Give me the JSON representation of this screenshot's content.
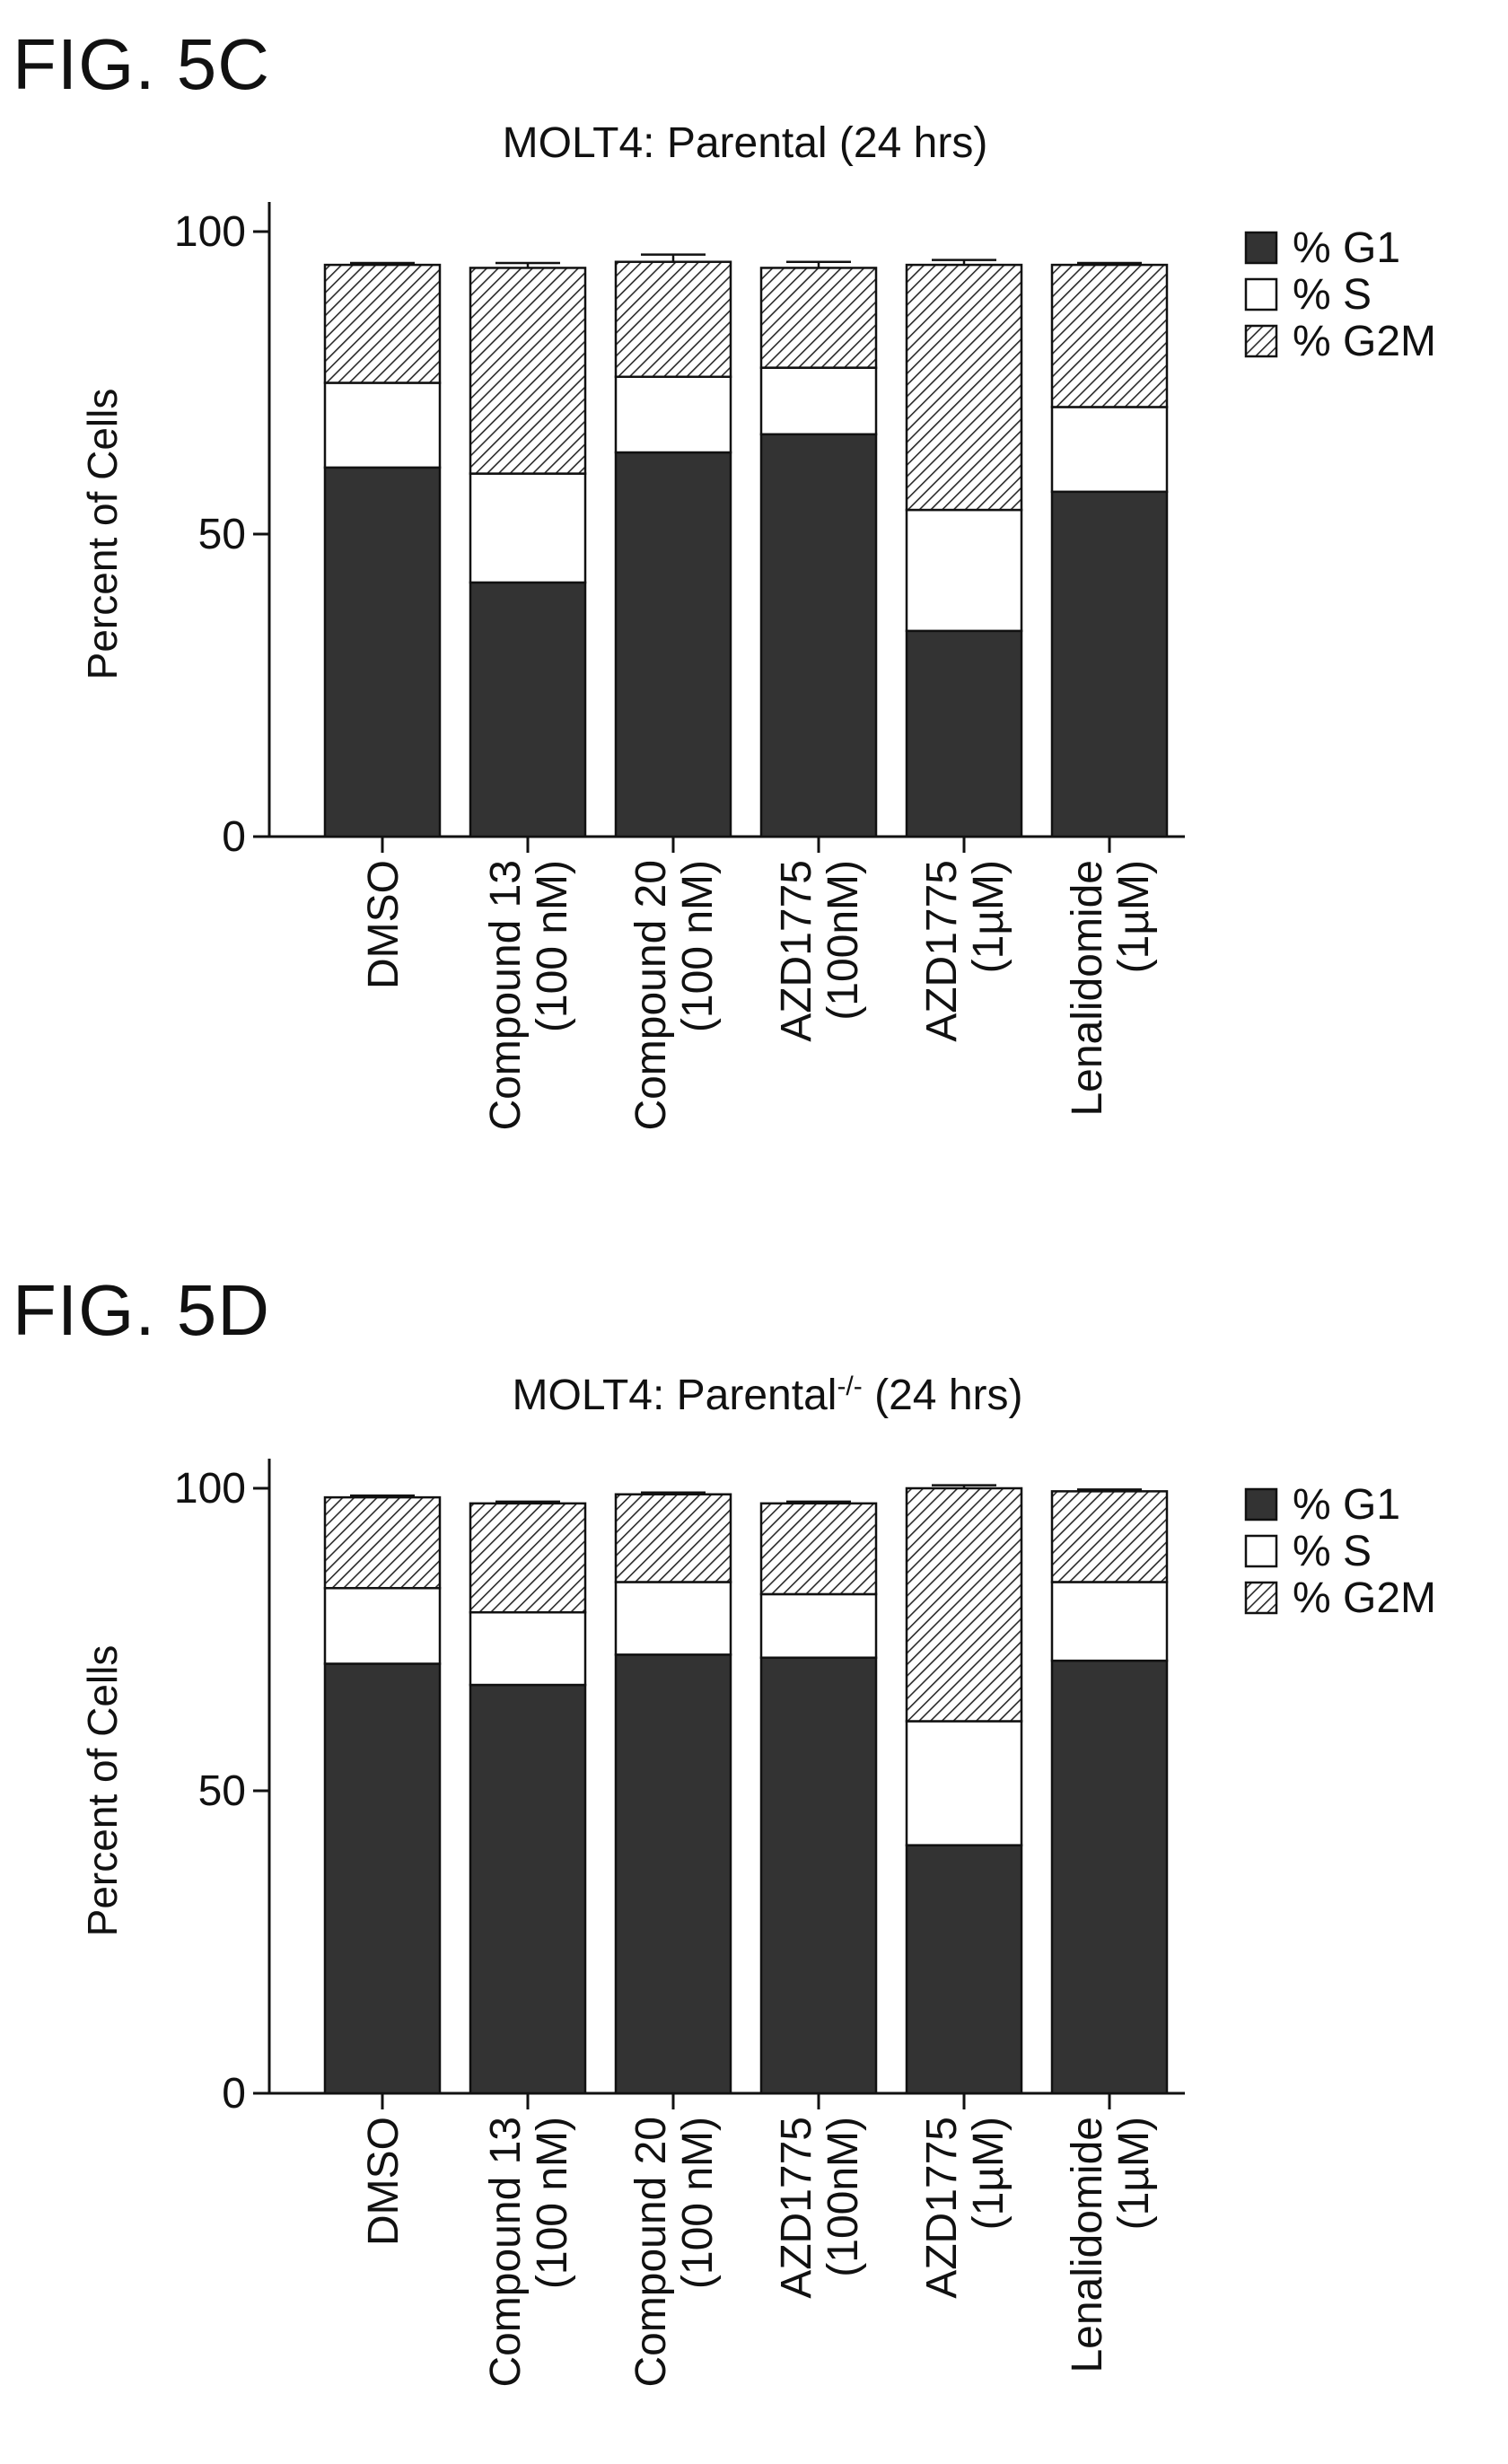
{
  "figures": [
    {
      "fig_label": "FIG. 5C",
      "title_main": "MOLT4: Parental",
      "title_sup": "",
      "title_tail": " (24 hrs)"
    },
    {
      "fig_label": "FIG. 5D",
      "title_main": "MOLT4: Parental",
      "title_sup": "-/-",
      "title_tail": " (24 hrs)"
    }
  ],
  "colors": {
    "g1": "#333333",
    "s": "#ffffff",
    "g2m_hatch": "#2a2a2a",
    "axis": "#111111"
  },
  "chart_data": [
    {
      "type": "bar",
      "stacked": true,
      "title": "MOLT4: Parental (24 hrs)",
      "ylabel": "Percent of Cells",
      "ylim": [
        0,
        100
      ],
      "yticks": [
        0,
        50,
        100
      ],
      "categories": [
        [
          "DMSO"
        ],
        [
          "Compound 13",
          "(100 nM)"
        ],
        [
          "Compound 20",
          "(100 nM)"
        ],
        [
          "AZD1775",
          "(100nM)"
        ],
        [
          "AZD1775",
          "(1µM)"
        ],
        [
          "Lenalidomide",
          "(1µM)"
        ]
      ],
      "legend": {
        "placement": "top-right",
        "entries": [
          "% G1",
          "% S",
          "% G2M"
        ]
      },
      "series": [
        {
          "name": "% G1",
          "values": [
            61,
            42,
            63.5,
            66.5,
            34,
            57
          ],
          "errors": [
            0.5,
            0.5,
            0.5,
            1.5,
            0.5,
            0.5
          ]
        },
        {
          "name": "% S",
          "values": [
            14,
            18,
            12.5,
            11,
            20,
            14
          ],
          "errors": [
            0.5,
            0.5,
            0.5,
            0.5,
            0.5,
            0.5
          ]
        },
        {
          "name": "% G2M",
          "values": [
            19.5,
            34,
            19,
            16.5,
            40.5,
            23.5
          ],
          "errors": [
            0.3,
            0.8,
            1.2,
            1.0,
            0.8,
            0.3
          ]
        }
      ]
    },
    {
      "type": "bar",
      "stacked": true,
      "title": "MOLT4: Parental-/- (24 hrs)",
      "ylabel": "Percent of Cells",
      "ylim": [
        0,
        100
      ],
      "yticks": [
        0,
        50,
        100
      ],
      "categories": [
        [
          "DMSO"
        ],
        [
          "Compound 13",
          "(100 nM)"
        ],
        [
          "Compound 20",
          "(100 nM)"
        ],
        [
          "AZD1775",
          "(100nM)"
        ],
        [
          "AZD1775",
          "(1µM)"
        ],
        [
          "Lenalidomide",
          "(1µM)"
        ]
      ],
      "legend": {
        "placement": "top-right",
        "entries": [
          "% G1",
          "% S",
          "% G2M"
        ]
      },
      "series": [
        {
          "name": "% G1",
          "values": [
            71,
            67.5,
            72.5,
            72,
            41,
            71.5
          ],
          "errors": [
            0.3,
            0.3,
            0.5,
            0.8,
            0.8,
            0.3
          ]
        },
        {
          "name": "% S",
          "values": [
            12.5,
            12,
            12,
            10.5,
            20.5,
            13
          ],
          "errors": [
            0.3,
            0.3,
            0.3,
            0.3,
            1.5,
            0.3
          ]
        },
        {
          "name": "% G2M",
          "values": [
            15,
            18,
            14.5,
            15,
            38.5,
            15
          ],
          "errors": [
            0.3,
            0.3,
            0.3,
            0.3,
            0.5,
            0.3
          ]
        }
      ]
    }
  ]
}
